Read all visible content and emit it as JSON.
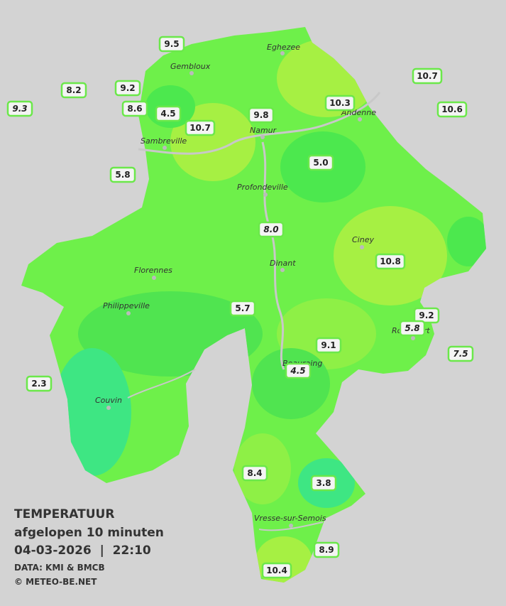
{
  "legend": {
    "title": "TEMPERATUUR",
    "subtitle": "afgelopen 10 minuten",
    "datetime": "04-03-2026  |  22:10",
    "source": "DATA: KMI & BMCB",
    "copyright": "© METEO-BE.NET"
  },
  "cities": [
    "Eghezee",
    "Gembloux",
    "Andenne",
    "Namur",
    "Sambreville",
    "Profondeville",
    "Ciney",
    "Dinant",
    "Florennes",
    "Philippeville",
    "Rochefort",
    "Beauraing",
    "Couvin",
    "Vresse-sur-Semois"
  ],
  "stations": [
    {
      "label": "9.5",
      "italic": false
    },
    {
      "label": "8.2",
      "italic": false
    },
    {
      "label": "9.2",
      "italic": false
    },
    {
      "label": "9.3",
      "italic": true
    },
    {
      "label": "8.6",
      "italic": false
    },
    {
      "label": "4.5",
      "italic": false
    },
    {
      "label": "10.7",
      "italic": false
    },
    {
      "label": "9.8",
      "italic": false
    },
    {
      "label": "10.3",
      "italic": false
    },
    {
      "label": "10.7",
      "italic": false
    },
    {
      "label": "10.6",
      "italic": false
    },
    {
      "label": "5.0",
      "italic": false
    },
    {
      "label": "5.8",
      "italic": false
    },
    {
      "label": "8.0",
      "italic": true
    },
    {
      "label": "10.8",
      "italic": false
    },
    {
      "label": "5.7",
      "italic": false
    },
    {
      "label": "9.2",
      "italic": false
    },
    {
      "label": "5.8",
      "italic": true
    },
    {
      "label": "7.5",
      "italic": true
    },
    {
      "label": "9.1",
      "italic": false
    },
    {
      "label": "4.5",
      "italic": true
    },
    {
      "label": "2.3",
      "italic": false
    },
    {
      "label": "8.4",
      "italic": false
    },
    {
      "label": "3.8",
      "italic": false
    },
    {
      "label": "8.9",
      "italic": false
    },
    {
      "label": "10.4",
      "italic": false
    }
  ]
}
